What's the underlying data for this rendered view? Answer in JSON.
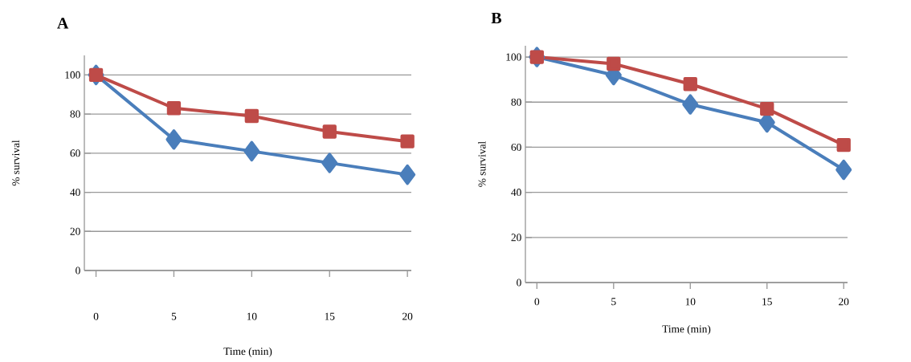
{
  "chart_data": [
    {
      "type": "line",
      "title": "A",
      "xlabel": "Time (min)",
      "ylabel": "% survival",
      "categories": [
        "0",
        "5",
        "10",
        "15",
        "20"
      ],
      "ylim": [
        0,
        110
      ],
      "yticks": [
        0,
        20,
        40,
        60,
        80,
        100
      ],
      "grid": "y",
      "series": [
        {
          "color": "#4a7ebb",
          "marker": "diamond",
          "values": [
            100,
            67,
            61,
            55,
            49
          ]
        },
        {
          "color": "#be4b48",
          "marker": "square",
          "values": [
            100,
            83,
            79,
            71,
            66
          ]
        }
      ]
    },
    {
      "type": "line",
      "title": "B",
      "xlabel": "Time (min)",
      "ylabel": "% survival",
      "categories": [
        "0",
        "5",
        "10",
        "15",
        "20"
      ],
      "ylim": [
        0,
        105
      ],
      "yticks": [
        0,
        20,
        40,
        60,
        80,
        100
      ],
      "grid": "y",
      "series": [
        {
          "color": "#4a7ebb",
          "marker": "diamond",
          "values": [
            100,
            92,
            79,
            71,
            50
          ]
        },
        {
          "color": "#be4b48",
          "marker": "square",
          "values": [
            100,
            97,
            88,
            77,
            61
          ]
        }
      ]
    }
  ]
}
